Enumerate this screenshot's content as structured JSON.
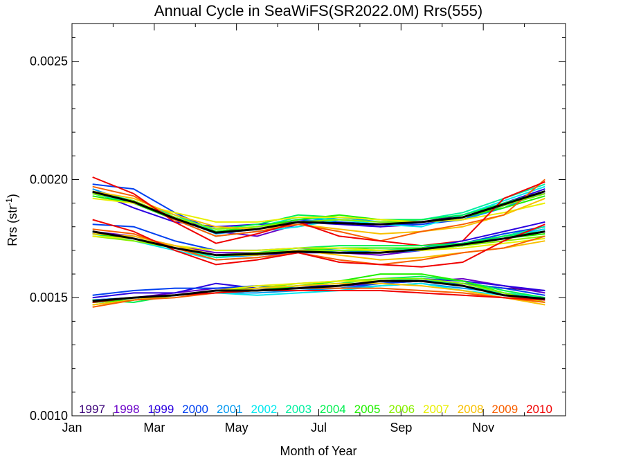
{
  "chart_data": {
    "type": "line",
    "title": "Annual Cycle in SeaWiFS(SR2022.0M) Rrs(555)",
    "xlabel": "Month of Year",
    "ylabel_main": "Rrs (str",
    "ylabel_sup": "-1",
    "ylabel_end": ")",
    "xlim": [
      0,
      12
    ],
    "ylim": [
      0.001,
      0.00266
    ],
    "x_ticks": [
      {
        "value": 0,
        "label": "Jan"
      },
      {
        "value": 2,
        "label": "Mar"
      },
      {
        "value": 4,
        "label": "May"
      },
      {
        "value": 6,
        "label": "Jul"
      },
      {
        "value": 8,
        "label": "Sep"
      },
      {
        "value": 10,
        "label": "Nov"
      }
    ],
    "y_ticks": [
      {
        "value": 0.001,
        "label": "0.0010"
      },
      {
        "value": 0.0015,
        "label": "0.0015"
      },
      {
        "value": 0.002,
        "label": "0.0020"
      },
      {
        "value": 0.0025,
        "label": "0.0025"
      }
    ],
    "grid": false,
    "legend_position": "bottom-inside",
    "months": [
      0.5,
      1.5,
      2.5,
      3.5,
      4.5,
      5.5,
      6.5,
      7.5,
      8.5,
      9.5,
      10.5,
      11.5
    ],
    "years": [
      {
        "name": "1997",
        "color": "#3a0078"
      },
      {
        "name": "1998",
        "color": "#6a00c8"
      },
      {
        "name": "1999",
        "color": "#2a00e0"
      },
      {
        "name": "2000",
        "color": "#0040f0"
      },
      {
        "name": "2001",
        "color": "#0098f0"
      },
      {
        "name": "2002",
        "color": "#00e8f0"
      },
      {
        "name": "2003",
        "color": "#00f0a0"
      },
      {
        "name": "2004",
        "color": "#00f050"
      },
      {
        "name": "2005",
        "color": "#20f000"
      },
      {
        "name": "2006",
        "color": "#88f000"
      },
      {
        "name": "2007",
        "color": "#e8f000"
      },
      {
        "name": "2008",
        "color": "#f8c000"
      },
      {
        "name": "2009",
        "color": "#f86000"
      },
      {
        "name": "2010",
        "color": "#f00000"
      }
    ],
    "climatology_series": [
      {
        "values": [
          0.001948,
          0.001905,
          0.001835,
          0.001775,
          0.00179,
          0.00182,
          0.001815,
          0.00181,
          0.00182,
          0.00184,
          0.001895,
          0.00195
        ]
      },
      {
        "values": [
          0.00178,
          0.00175,
          0.00171,
          0.00168,
          0.001685,
          0.001695,
          0.00169,
          0.00169,
          0.001705,
          0.001725,
          0.00175,
          0.00178
        ]
      },
      {
        "values": [
          0.001485,
          0.0015,
          0.00151,
          0.00153,
          0.00153,
          0.00154,
          0.00155,
          0.00157,
          0.00157,
          0.00155,
          0.00151,
          0.001495
        ]
      }
    ],
    "year_series": [
      {
        "year": "1997",
        "group": "high",
        "values": [
          null,
          null,
          null,
          null,
          null,
          null,
          null,
          null,
          0.00182,
          0.00185,
          0.0019,
          0.00194
        ]
      },
      {
        "year": "1998",
        "group": "high",
        "values": [
          0.00194,
          0.0019,
          0.00183,
          0.00178,
          0.00176,
          0.00181,
          0.00182,
          0.0018,
          0.00181,
          0.00184,
          0.00189,
          0.00195
        ]
      },
      {
        "year": "1999",
        "group": "high",
        "values": [
          0.00195,
          0.00188,
          0.00182,
          0.0018,
          0.00181,
          0.00182,
          0.00181,
          0.0018,
          0.00182,
          0.00184,
          0.0019,
          0.00196
        ]
      },
      {
        "year": "2000",
        "group": "high",
        "values": [
          0.00198,
          0.00196,
          0.00186,
          0.00178,
          0.0018,
          0.00183,
          0.00182,
          0.00181,
          0.00181,
          0.00183,
          0.00189,
          0.00194
        ]
      },
      {
        "year": "2001",
        "group": "high",
        "values": [
          0.00196,
          0.0019,
          0.00184,
          0.00177,
          0.00179,
          0.00182,
          0.00184,
          0.00182,
          0.00182,
          0.00183,
          0.00188,
          0.00195
        ]
      },
      {
        "year": "2002",
        "group": "high",
        "values": [
          0.00195,
          0.00191,
          0.00183,
          0.00176,
          0.00178,
          0.0018,
          0.00183,
          0.00181,
          0.0018,
          0.00185,
          0.00191,
          0.00197
        ]
      },
      {
        "year": "2003",
        "group": "high",
        "values": [
          0.00194,
          0.0019,
          0.00185,
          0.00178,
          0.0018,
          0.00184,
          0.00183,
          0.00182,
          0.00183,
          0.00186,
          0.00192,
          0.00198
        ]
      },
      {
        "year": "2004",
        "group": "high",
        "values": [
          0.00195,
          0.00191,
          0.00184,
          0.00179,
          0.00181,
          0.00185,
          0.00184,
          0.00183,
          0.00183,
          0.00185,
          0.0019,
          0.00195
        ]
      },
      {
        "year": "2005",
        "group": "high",
        "values": [
          0.00193,
          0.0019,
          0.00183,
          0.00178,
          0.0018,
          0.00183,
          0.00185,
          0.00183,
          0.00182,
          0.00184,
          0.00188,
          0.00193
        ]
      },
      {
        "year": "2006",
        "group": "high",
        "values": [
          0.00194,
          0.00191,
          0.00184,
          0.00179,
          0.0018,
          0.00182,
          0.00183,
          0.00182,
          0.00182,
          0.00184,
          0.00189,
          0.00194
        ]
      },
      {
        "year": "2007",
        "group": "high",
        "values": [
          0.00192,
          0.0019,
          0.00186,
          0.00182,
          0.00182,
          0.00184,
          0.00184,
          0.00183,
          0.00182,
          0.00183,
          0.00186,
          0.0019
        ]
      },
      {
        "year": "2008",
        "group": "high",
        "values": [
          0.00195,
          0.00192,
          0.00185,
          0.0018,
          0.00179,
          0.00181,
          0.00179,
          0.00177,
          0.00178,
          0.0018,
          0.00185,
          0.00192
        ]
      },
      {
        "year": "2009",
        "group": "high",
        "values": [
          0.00197,
          0.00193,
          0.00183,
          0.00176,
          0.00178,
          0.00181,
          0.00178,
          0.00174,
          0.00178,
          0.00181,
          0.00185,
          0.002
        ]
      },
      {
        "year": "2010",
        "group": "high",
        "values": [
          0.00201,
          0.00194,
          0.00182,
          0.00173,
          0.00177,
          0.00182,
          0.00176,
          0.00174,
          0.00172,
          0.00174,
          0.00192,
          0.00199
        ]
      },
      {
        "year": "1997",
        "group": "mid",
        "values": [
          null,
          null,
          null,
          null,
          null,
          null,
          null,
          null,
          0.00171,
          0.00173,
          0.00176,
          0.00179
        ]
      },
      {
        "year": "1998",
        "group": "mid",
        "values": [
          0.00178,
          0.00176,
          0.00172,
          0.00169,
          0.00169,
          0.0017,
          0.00169,
          0.00168,
          0.0017,
          0.00173,
          0.00176,
          0.0018
        ]
      },
      {
        "year": "1999",
        "group": "mid",
        "values": [
          0.00177,
          0.00175,
          0.00171,
          0.00168,
          0.00168,
          0.00169,
          0.00169,
          0.00169,
          0.00171,
          0.00174,
          0.00178,
          0.00182
        ]
      },
      {
        "year": "2000",
        "group": "mid",
        "values": [
          0.00181,
          0.0018,
          0.00174,
          0.0017,
          0.0017,
          0.00171,
          0.0017,
          0.00169,
          0.0017,
          0.00173,
          0.00177,
          0.0018
        ]
      },
      {
        "year": "2001",
        "group": "mid",
        "values": [
          0.00178,
          0.00175,
          0.00171,
          0.00167,
          0.00168,
          0.0017,
          0.0017,
          0.00169,
          0.0017,
          0.00172,
          0.00176,
          0.00179
        ]
      },
      {
        "year": "2002",
        "group": "mid",
        "values": [
          0.00177,
          0.00174,
          0.0017,
          0.00166,
          0.00167,
          0.00169,
          0.0017,
          0.0017,
          0.0017,
          0.00172,
          0.00175,
          0.00179
        ]
      },
      {
        "year": "2003",
        "group": "mid",
        "values": [
          0.00178,
          0.00175,
          0.00171,
          0.00167,
          0.00169,
          0.0017,
          0.00171,
          0.0017,
          0.00171,
          0.00173,
          0.00176,
          0.0018
        ]
      },
      {
        "year": "2004",
        "group": "mid",
        "values": [
          0.00178,
          0.00175,
          0.00171,
          0.00168,
          0.00169,
          0.00171,
          0.00172,
          0.00172,
          0.00172,
          0.00173,
          0.00176,
          0.00178
        ]
      },
      {
        "year": "2005",
        "group": "mid",
        "values": [
          0.00177,
          0.00175,
          0.00171,
          0.00168,
          0.00168,
          0.0017,
          0.00171,
          0.00171,
          0.00171,
          0.00172,
          0.00175,
          0.00177
        ]
      },
      {
        "year": "2006",
        "group": "mid",
        "values": [
          0.00176,
          0.00174,
          0.00171,
          0.00168,
          0.00169,
          0.0017,
          0.0017,
          0.0017,
          0.0017,
          0.00172,
          0.00174,
          0.00176
        ]
      },
      {
        "year": "2007",
        "group": "mid",
        "values": [
          0.00176,
          0.00175,
          0.00172,
          0.0017,
          0.0017,
          0.00171,
          0.00171,
          0.0017,
          0.0017,
          0.00171,
          0.00173,
          0.00175
        ]
      },
      {
        "year": "2008",
        "group": "mid",
        "values": [
          0.00177,
          0.00176,
          0.00172,
          0.00168,
          0.00168,
          0.0017,
          0.00168,
          0.00166,
          0.00167,
          0.00169,
          0.00171,
          0.00174
        ]
      },
      {
        "year": "2009",
        "group": "mid",
        "values": [
          0.00179,
          0.00177,
          0.00171,
          0.00166,
          0.00167,
          0.00169,
          0.00166,
          0.00164,
          0.00166,
          0.00169,
          0.00171,
          0.00176
        ]
      },
      {
        "year": "2010",
        "group": "mid",
        "values": [
          0.00183,
          0.00178,
          0.0017,
          0.00164,
          0.00166,
          0.00169,
          0.00165,
          0.00164,
          0.00163,
          0.00165,
          0.00174,
          0.00181
        ]
      },
      {
        "year": "1997",
        "group": "low",
        "values": [
          null,
          null,
          null,
          null,
          null,
          null,
          null,
          null,
          0.00157,
          0.00156,
          0.00154,
          0.00153
        ]
      },
      {
        "year": "1998",
        "group": "low",
        "values": [
          0.00149,
          0.0015,
          0.00152,
          0.00154,
          0.00154,
          0.00154,
          0.00155,
          0.00156,
          0.00157,
          0.00158,
          0.00155,
          0.00152
        ]
      },
      {
        "year": "1999",
        "group": "low",
        "values": [
          0.0015,
          0.00152,
          0.00152,
          0.00156,
          0.00154,
          0.00155,
          0.00155,
          0.00157,
          0.00158,
          0.00157,
          0.00155,
          0.00153
        ]
      },
      {
        "year": "2000",
        "group": "low",
        "values": [
          0.00151,
          0.00153,
          0.00154,
          0.00154,
          0.00155,
          0.00154,
          0.00154,
          0.00156,
          0.00157,
          0.00156,
          0.00154,
          0.00151
        ]
      },
      {
        "year": "2001",
        "group": "low",
        "values": [
          0.00149,
          0.0015,
          0.00151,
          0.00152,
          0.00152,
          0.00153,
          0.00154,
          0.00155,
          0.00156,
          0.00154,
          0.00152,
          0.0015
        ]
      },
      {
        "year": "2002",
        "group": "low",
        "values": [
          0.00148,
          0.00149,
          0.00151,
          0.00152,
          0.00151,
          0.00152,
          0.00153,
          0.00155,
          0.00156,
          0.00153,
          0.00151,
          0.00149
        ]
      },
      {
        "year": "2003",
        "group": "low",
        "values": [
          0.00148,
          0.00149,
          0.00151,
          0.00153,
          0.00153,
          0.00154,
          0.00155,
          0.00157,
          0.00158,
          0.00155,
          0.00152,
          0.0015
        ]
      },
      {
        "year": "2004",
        "group": "low",
        "values": [
          0.00149,
          0.00148,
          0.00151,
          0.00153,
          0.00154,
          0.00155,
          0.00156,
          0.00158,
          0.00159,
          0.00157,
          0.00153,
          0.0015
        ]
      },
      {
        "year": "2005",
        "group": "low",
        "values": [
          0.00148,
          0.00149,
          0.00151,
          0.00152,
          0.00153,
          0.00155,
          0.00157,
          0.0016,
          0.0016,
          0.00157,
          0.00152,
          0.00148
        ]
      },
      {
        "year": "2006",
        "group": "low",
        "values": [
          0.00147,
          0.00149,
          0.00151,
          0.00153,
          0.00154,
          0.00156,
          0.00157,
          0.00158,
          0.00158,
          0.00156,
          0.00152,
          0.00148
        ]
      },
      {
        "year": "2007",
        "group": "low",
        "values": [
          0.00147,
          0.00149,
          0.00151,
          0.00153,
          0.00155,
          0.00156,
          0.00157,
          0.00157,
          0.00157,
          0.00155,
          0.00151,
          0.00148
        ]
      },
      {
        "year": "2008",
        "group": "low",
        "values": [
          0.00147,
          0.00149,
          0.00151,
          0.00152,
          0.00154,
          0.00155,
          0.00156,
          0.00156,
          0.00155,
          0.00153,
          0.0015,
          0.00147
        ]
      },
      {
        "year": "2009",
        "group": "low",
        "values": [
          0.00146,
          0.00149,
          0.0015,
          0.00152,
          0.00153,
          0.00154,
          0.00154,
          0.00154,
          0.00153,
          0.00152,
          0.0015,
          0.00148
        ]
      },
      {
        "year": "2010",
        "group": "low",
        "values": [
          0.00148,
          0.0015,
          0.00151,
          0.00152,
          0.00153,
          0.00153,
          0.00153,
          0.00153,
          0.00152,
          0.00151,
          0.0015,
          0.00149
        ]
      }
    ]
  }
}
